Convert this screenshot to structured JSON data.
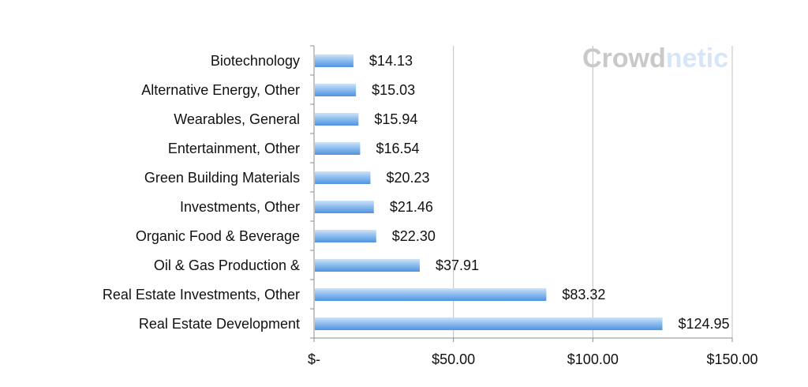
{
  "chart_data": {
    "type": "bar",
    "orientation": "horizontal",
    "categories": [
      "Biotechnology",
      "Alternative Energy, Other",
      "Wearables, General",
      "Entertainment, Other",
      "Green Building Materials",
      "Investments, Other",
      "Organic Food & Beverage",
      "Oil & Gas Production &",
      "Real Estate Investments, Other",
      "Real Estate Development"
    ],
    "values": [
      14.13,
      15.03,
      15.94,
      16.54,
      20.23,
      21.46,
      22.3,
      37.91,
      83.32,
      124.95
    ],
    "value_labels": [
      "$14.13",
      "$15.03",
      "$15.94",
      "$16.54",
      "$20.23",
      "$21.46",
      "$22.30",
      "$37.91",
      "$83.32",
      "$124.95"
    ],
    "xlim": [
      0,
      150
    ],
    "xticks": [
      0,
      50,
      100,
      150
    ],
    "xtick_labels": [
      "$-",
      "$50.00",
      "$100.00",
      "$150.00"
    ],
    "grid": true,
    "title": "",
    "xlabel": "",
    "ylabel": ""
  },
  "watermark": {
    "part1": "Crowd",
    "part2": "netic"
  },
  "colors": {
    "bar_light": "#cfe3f8",
    "bar_mid": "#8fbff0",
    "bar_dark": "#4f93e0",
    "grid": "#bfbfbf",
    "axis": "#8c8c8c",
    "watermark_gray": "#c9c9c9",
    "watermark_blue": "#d6e6f6"
  }
}
